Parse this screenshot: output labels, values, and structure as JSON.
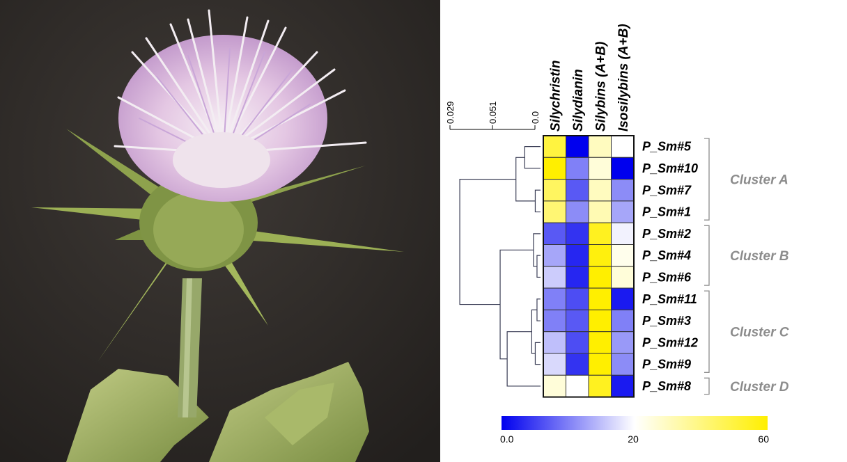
{
  "photo": {
    "subject": "milk-thistle-flower-photo"
  },
  "chart_data": {
    "type": "heatmap",
    "columns": [
      "Silychristin",
      "Silydianin",
      "Silybins (A+B)",
      "Isosilybins (A+B)"
    ],
    "rows": [
      "P_Sm#5",
      "P_Sm#10",
      "P_Sm#7",
      "P_Sm#1",
      "P_Sm#2",
      "P_Sm#4",
      "P_Sm#6",
      "P_Sm#11",
      "P_Sm#3",
      "P_Sm#12",
      "P_Sm#9",
      "P_Sm#8"
    ],
    "values": [
      [
        50,
        0,
        30,
        20
      ],
      [
        60,
        10,
        26,
        0
      ],
      [
        45,
        7,
        30,
        11
      ],
      [
        42,
        11,
        32,
        13
      ],
      [
        7,
        4,
        55,
        19
      ],
      [
        13,
        3,
        58,
        23
      ],
      [
        16,
        3,
        60,
        26
      ],
      [
        10,
        6,
        60,
        2
      ],
      [
        10,
        7,
        60,
        10
      ],
      [
        15,
        6,
        60,
        12
      ],
      [
        17,
        4,
        60,
        11
      ],
      [
        26,
        20,
        55,
        2
      ]
    ],
    "clusters": [
      {
        "name": "Cluster A",
        "rows": [
          "P_Sm#5",
          "P_Sm#10",
          "P_Sm#7",
          "P_Sm#1"
        ]
      },
      {
        "name": "Cluster B",
        "rows": [
          "P_Sm#2",
          "P_Sm#4",
          "P_Sm#6"
        ]
      },
      {
        "name": "Cluster C",
        "rows": [
          "P_Sm#11",
          "P_Sm#3",
          "P_Sm#12",
          "P_Sm#9"
        ]
      },
      {
        "name": "Cluster D",
        "rows": [
          "P_Sm#8"
        ]
      }
    ],
    "dendrogram_scale": {
      "ticks": [
        "0.029",
        "0.051",
        "0.0"
      ]
    },
    "dendrogram": {
      "merges": [
        {
          "id": "n1",
          "children": [
            {
              "leaf": 2
            },
            {
              "leaf": 3
            }
          ],
          "height": 0.003
        },
        {
          "id": "n2",
          "children": [
            {
              "leaf": 0
            },
            {
              "leaf": 1
            }
          ],
          "height": 0.009
        },
        {
          "id": "n3",
          "children": [
            {
              "node": "n2"
            },
            {
              "node": "n1"
            }
          ],
          "height": 0.014
        },
        {
          "id": "n4",
          "children": [
            {
              "leaf": 5
            },
            {
              "leaf": 6
            }
          ],
          "height": 0.002
        },
        {
          "id": "n5",
          "children": [
            {
              "leaf": 4
            },
            {
              "node": "n4"
            }
          ],
          "height": 0.004
        },
        {
          "id": "n6",
          "children": [
            {
              "leaf": 7
            },
            {
              "leaf": 8
            }
          ],
          "height": 0.002
        },
        {
          "id": "n7",
          "children": [
            {
              "leaf": 9
            },
            {
              "leaf": 10
            }
          ],
          "height": 0.003
        },
        {
          "id": "n8",
          "children": [
            {
              "node": "n6"
            },
            {
              "node": "n7"
            }
          ],
          "height": 0.005
        },
        {
          "id": "n9",
          "children": [
            {
              "node": "n8"
            },
            {
              "leaf": 11
            }
          ],
          "height": 0.019
        },
        {
          "id": "n10",
          "children": [
            {
              "node": "n5"
            },
            {
              "node": "n9"
            }
          ],
          "height": 0.023
        },
        {
          "id": "n11",
          "children": [
            {
              "node": "n3"
            },
            {
              "node": "n10"
            }
          ],
          "height": 0.046
        }
      ]
    },
    "colorbar": {
      "ticks": [
        "0.0",
        "20",
        "60"
      ],
      "tick_values": [
        0,
        20,
        60
      ],
      "range": [
        0,
        60
      ],
      "colors": {
        "low": "#0000ee",
        "mid": "#ffffff",
        "high": "#ffef00"
      }
    }
  }
}
